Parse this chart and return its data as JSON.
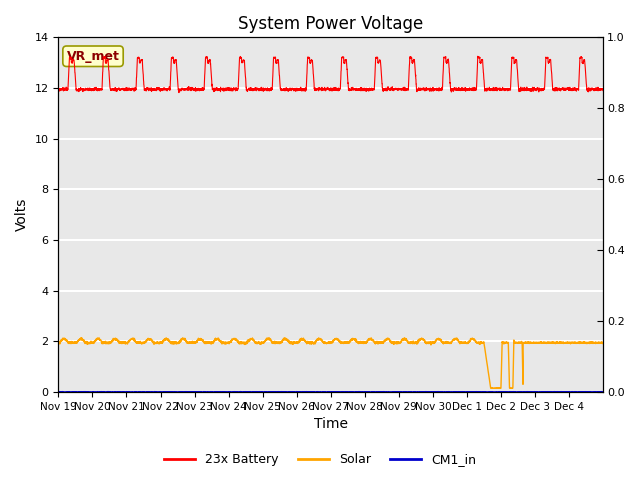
{
  "title": "System Power Voltage",
  "xlabel": "Time",
  "ylabel": "Volts",
  "xlim": [
    0,
    16
  ],
  "ylim_left": [
    0,
    14
  ],
  "ylim_right": [
    0.0,
    1.0
  ],
  "bg_color": "#e8e8e8",
  "grid_color": "#ffffff",
  "annotation_text": "VR_met",
  "annotation_facecolor": "#ffffcc",
  "annotation_edgecolor": "#999900",
  "annotation_textcolor": "#8B0000",
  "legend_labels": [
    "23x Battery",
    "Solar",
    "CM1_in"
  ],
  "battery_color": "#ff0000",
  "solar_color": "#ffa500",
  "cm1_color": "#0000cc",
  "xtick_labels": [
    "Nov 19",
    "Nov 20",
    "Nov 21",
    "Nov 22",
    "Nov 23",
    "Nov 24",
    "Nov 25",
    "Nov 26",
    "Nov 27",
    "Nov 28",
    "Nov 29",
    "Nov 30",
    "Dec 1",
    "Dec 2",
    "Dec 3",
    "Dec 4"
  ],
  "ytick_left": [
    0,
    2,
    4,
    6,
    8,
    10,
    12,
    14
  ],
  "ytick_right": [
    0.0,
    0.2,
    0.4,
    0.6,
    0.8,
    1.0
  ],
  "title_fontsize": 12,
  "axis_label_fontsize": 10,
  "tick_fontsize": 8,
  "xtick_fontsize": 7.5,
  "battery_base": 11.95,
  "battery_peak": 12.9,
  "solar_base": 1.95,
  "solar_low": 0.15,
  "solar_drop_start": 12.5,
  "solar_drop_end": 12.7,
  "solar_pulse1_start": 13.0,
  "solar_pulse1_end": 13.25,
  "solar_pulse2_start": 13.35,
  "solar_pulse2_end": 13.65,
  "solar_recover": 13.65
}
